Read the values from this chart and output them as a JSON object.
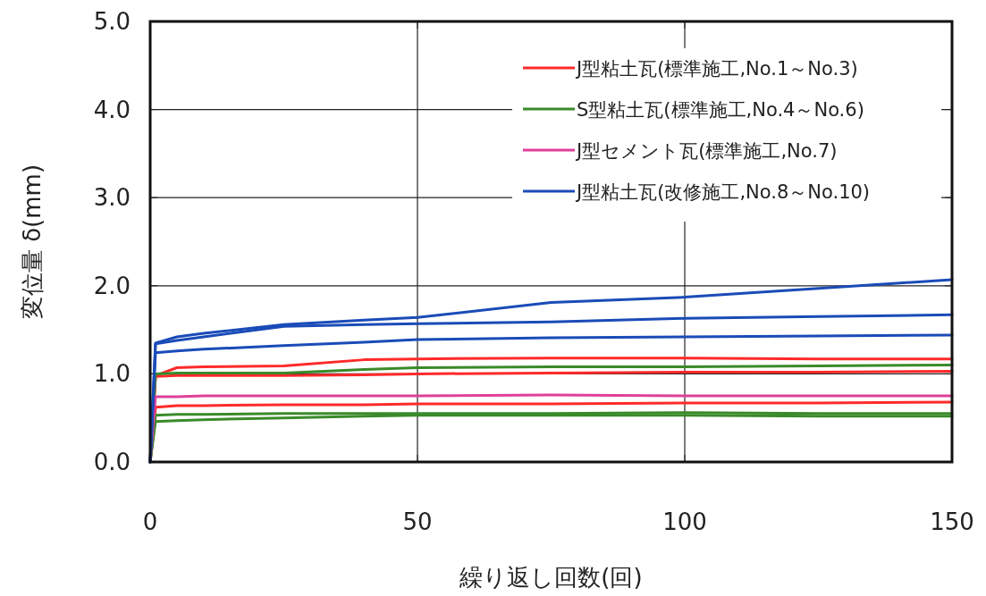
{
  "chart_data": {
    "type": "line",
    "xlabel": "繰り返し回数(回)",
    "ylabel": "変位量 δ(mm)",
    "xlim": [
      0,
      150
    ],
    "ylim": [
      0,
      5
    ],
    "xticks": [
      0,
      50,
      100,
      150
    ],
    "yticks": [
      {
        "value": 0,
        "label": "0.0"
      },
      {
        "value": 1,
        "label": "1.0"
      },
      {
        "value": 2,
        "label": "2.0"
      },
      {
        "value": 3,
        "label": "3.0"
      },
      {
        "value": 4,
        "label": "4.0"
      },
      {
        "value": 5,
        "label": "5.0"
      }
    ],
    "grid": true,
    "legend": "top right",
    "marker": "none",
    "line_style": "solid",
    "x": [
      0,
      1,
      5,
      10,
      25,
      40,
      50,
      75,
      100,
      125,
      150
    ],
    "series": [
      {
        "name": "J型粘土瓦(標準施工,No.1～No.3)",
        "color": "#ff2a2a",
        "values": [
          0,
          0.98,
          1.07,
          1.08,
          1.09,
          1.16,
          1.17,
          1.18,
          1.18,
          1.17,
          1.17
        ]
      },
      {
        "color": "#ff2a2a",
        "values": [
          0,
          0.97,
          0.98,
          0.98,
          0.98,
          0.99,
          1.0,
          1.01,
          1.02,
          1.02,
          1.03
        ]
      },
      {
        "color": "#ff2a2a",
        "values": [
          0,
          0.62,
          0.64,
          0.64,
          0.65,
          0.65,
          0.66,
          0.66,
          0.67,
          0.67,
          0.68
        ]
      },
      {
        "name": "S型粘土瓦(標準施工,No.4～No.6)",
        "color": "#3a8a2a",
        "values": [
          0,
          1.0,
          1.01,
          1.01,
          1.01,
          1.05,
          1.07,
          1.08,
          1.08,
          1.09,
          1.1
        ]
      },
      {
        "color": "#3a8a2a",
        "values": [
          0,
          0.53,
          0.54,
          0.54,
          0.55,
          0.55,
          0.55,
          0.55,
          0.56,
          0.55,
          0.55
        ]
      },
      {
        "color": "#3a8a2a",
        "values": [
          0,
          0.46,
          0.47,
          0.48,
          0.5,
          0.52,
          0.53,
          0.53,
          0.53,
          0.52,
          0.52
        ]
      },
      {
        "name": "J型セメント瓦(標準施工,No.7)",
        "color": "#e0409a",
        "values": [
          0,
          0.74,
          0.74,
          0.75,
          0.75,
          0.75,
          0.75,
          0.76,
          0.75,
          0.75,
          0.75
        ]
      },
      {
        "name": "J型粘土瓦(改修施工,No.8～No.10)",
        "color": "#1a4bb8",
        "values": [
          0,
          1.35,
          1.42,
          1.46,
          1.56,
          1.61,
          1.64,
          1.81,
          1.87,
          1.97,
          2.07
        ]
      },
      {
        "color": "#1a4bb8",
        "values": [
          0,
          1.34,
          1.38,
          1.42,
          1.54,
          1.56,
          1.57,
          1.59,
          1.63,
          1.65,
          1.67
        ]
      },
      {
        "color": "#1a4bb8",
        "values": [
          0,
          1.24,
          1.26,
          1.28,
          1.32,
          1.36,
          1.39,
          1.41,
          1.42,
          1.43,
          1.44
        ]
      }
    ]
  }
}
